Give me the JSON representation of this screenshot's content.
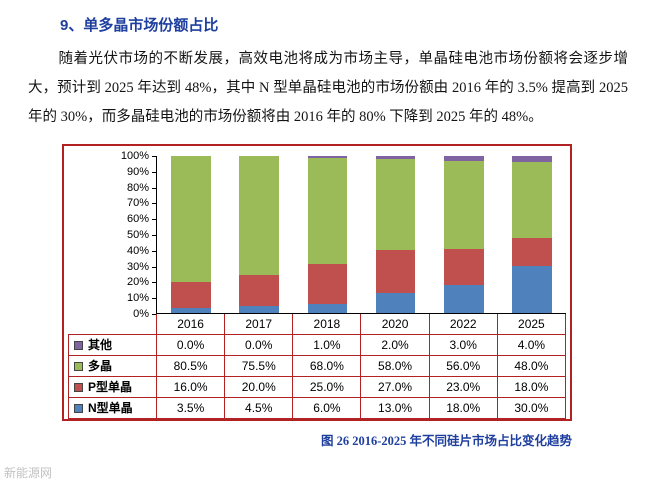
{
  "page": {
    "heading": "9、单多晶市场份额占比",
    "paragraph": "随着光伏市场的不断发展，高效电池将成为市场主导，单晶硅电池市场份额将会逐步增大，预计到 2025 年达到 48%，其中 N 型单晶硅电池的市场份额由 2016 年的 3.5% 提高到 2025 年的 30%，而多晶硅电池的市场份额将由 2016 年的 80% 下降到 2025 年的 48%。",
    "caption": "图 26 2016-2025 年不同硅片市场占比变化趋势",
    "watermark": "新能源网"
  },
  "colors": {
    "heading_blue": "#1f3f9f",
    "figure_border_red": "#b22222"
  },
  "chart_data": {
    "type": "bar",
    "stacked": true,
    "title": "",
    "xlabel": "",
    "ylabel": "",
    "ylim": [
      0,
      100
    ],
    "grid": false,
    "data_table_shown": true,
    "categories": [
      "2016",
      "2017",
      "2018",
      "2020",
      "2022",
      "2025"
    ],
    "series": [
      {
        "name": "其他",
        "color": "#8064a2",
        "values": [
          0.0,
          0.0,
          1.0,
          2.0,
          3.0,
          4.0
        ]
      },
      {
        "name": "多晶",
        "color": "#9bbb59",
        "values": [
          80.5,
          75.5,
          68.0,
          58.0,
          56.0,
          48.0
        ]
      },
      {
        "name": "P型单晶",
        "color": "#c0504d",
        "values": [
          16.0,
          20.0,
          25.0,
          27.0,
          23.0,
          18.0
        ]
      },
      {
        "name": "N型单晶",
        "color": "#4f81bd",
        "values": [
          3.5,
          4.5,
          6.0,
          13.0,
          18.0,
          30.0
        ]
      }
    ],
    "stack_order_bottom_to_top": [
      "N型单晶",
      "P型单晶",
      "多晶",
      "其他"
    ],
    "y_ticks": [
      "100%",
      "90%",
      "80%",
      "70%",
      "60%",
      "50%",
      "40%",
      "30%",
      "20%",
      "10%",
      "0%"
    ],
    "value_suffix": "%"
  }
}
